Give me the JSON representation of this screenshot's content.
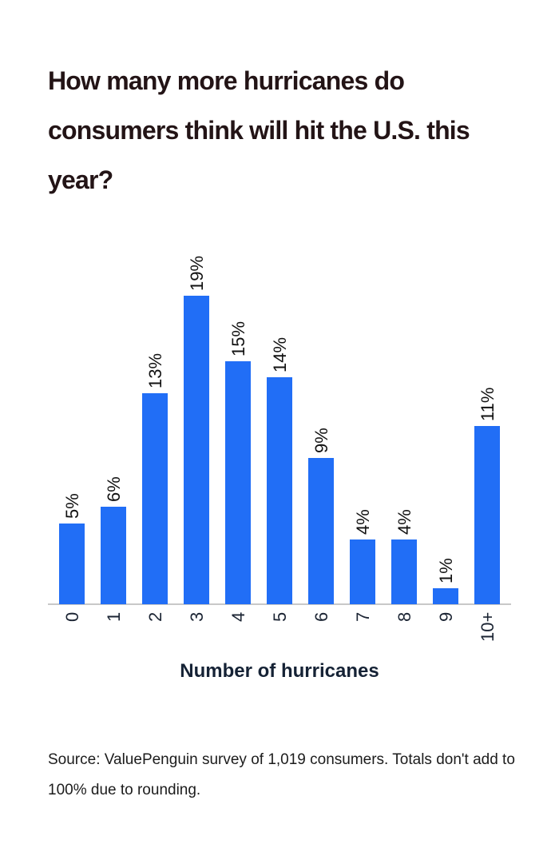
{
  "title": "How many more hurricanes do consumers think will hit the U.S. this year?",
  "xlabel": "Number of hurricanes",
  "source": "Source: ValuePenguin survey of 1,019 consumers. Totals don't add to 100% due to rounding.",
  "colors": {
    "bar": "#216ef6",
    "title": "#231416",
    "axis": "#c8c8c8"
  },
  "chart_data": {
    "type": "bar",
    "title": "How many more hurricanes do consumers think will hit the U.S. this year?",
    "xlabel": "Number of hurricanes",
    "ylabel": "",
    "categories": [
      "0",
      "1",
      "2",
      "3",
      "4",
      "5",
      "6",
      "7",
      "8",
      "9",
      "10+"
    ],
    "values": [
      5,
      6,
      13,
      19,
      15,
      14,
      9,
      4,
      4,
      1,
      11
    ],
    "value_labels": [
      "5%",
      "6%",
      "13%",
      "19%",
      "15%",
      "14%",
      "9%",
      "4%",
      "4%",
      "1%",
      "11%"
    ],
    "unit": "%",
    "ylim": [
      0,
      20
    ],
    "grid": false,
    "legend": null
  }
}
